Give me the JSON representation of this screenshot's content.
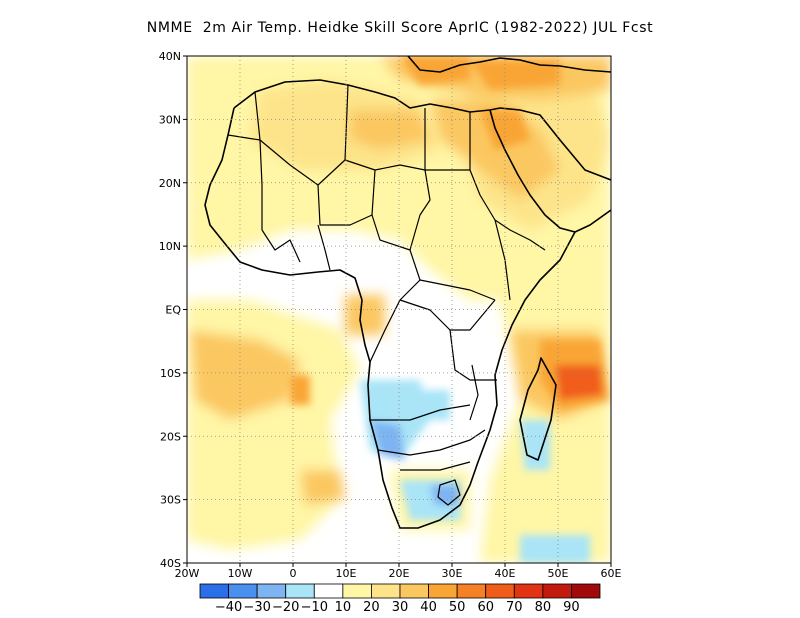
{
  "title": "NMME  2m Air Temp. Heidke Skill Score AprIC (1982-2022) JUL Fcst",
  "map": {
    "lon_range": [
      -20,
      60
    ],
    "lat_range": [
      -40,
      40
    ],
    "lon_ticks": [
      {
        "value": -20,
        "label": "20W"
      },
      {
        "value": -10,
        "label": "10W"
      },
      {
        "value": 0,
        "label": "0"
      },
      {
        "value": 10,
        "label": "10E"
      },
      {
        "value": 20,
        "label": "20E"
      },
      {
        "value": 30,
        "label": "30E"
      },
      {
        "value": 40,
        "label": "40E"
      },
      {
        "value": 50,
        "label": "50E"
      },
      {
        "value": 60,
        "label": "60E"
      }
    ],
    "lat_ticks": [
      {
        "value": 40,
        "label": "40N"
      },
      {
        "value": 30,
        "label": "30N"
      },
      {
        "value": 20,
        "label": "20N"
      },
      {
        "value": 10,
        "label": "10N"
      },
      {
        "value": 0,
        "label": "EQ"
      },
      {
        "value": -10,
        "label": "10S"
      },
      {
        "value": -20,
        "label": "20S"
      },
      {
        "value": -30,
        "label": "30S"
      },
      {
        "value": -40,
        "label": "40S"
      }
    ],
    "grid": "dotted"
  },
  "colorbar": {
    "colors": [
      "#2a6fe8",
      "#4a90ee",
      "#7eb4f2",
      "#a9e4f7",
      "#ffffff",
      "#fff6a6",
      "#fde48a",
      "#fbc760",
      "#f9a536",
      "#f68026",
      "#f05d1b",
      "#e03415",
      "#c31a10",
      "#a00a0a"
    ],
    "labels": [
      "-40",
      "-30",
      "-20",
      "-10",
      "10",
      "20",
      "30",
      "40",
      "50",
      "60",
      "70",
      "80",
      "90"
    ]
  },
  "skill_regions": [
    {
      "name": "north-africa-warm",
      "level": 20,
      "color": "#fde48a"
    },
    {
      "name": "egypt-arabia-warm",
      "level": 30,
      "color": "#fbc760"
    },
    {
      "name": "mediterranean-hot",
      "level": 40,
      "color": "#f9a536"
    },
    {
      "name": "madagascar-east-hot",
      "level": 60,
      "color": "#f05d1b"
    },
    {
      "name": "southern-africa-cool",
      "level": -20,
      "color": "#7eb4f2"
    }
  ]
}
